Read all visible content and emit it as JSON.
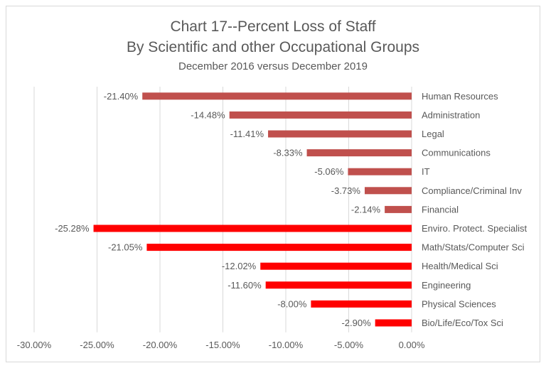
{
  "chart_data": {
    "type": "bar",
    "orientation": "horizontal",
    "title": "Chart 17--Percent Loss of Staff",
    "title_line2": "By Scientific and other Occupational Groups",
    "subtitle": "December 2016 versus December 2019",
    "xlabel": "",
    "ylabel": "",
    "xlim": [
      -30,
      0
    ],
    "x_ticks": [
      "-30.00%",
      "-25.00%",
      "-20.00%",
      "-15.00%",
      "-10.00%",
      "-5.00%",
      "0.00%"
    ],
    "x_tick_values": [
      -30,
      -25,
      -20,
      -15,
      -10,
      -5,
      0
    ],
    "grid": true,
    "legend": "none",
    "categories": [
      "Human Resources",
      "Administration",
      "Legal",
      "Communications",
      "IT",
      "Compliance/Criminal Inv",
      "Financial",
      "Enviro. Protect. Specialist",
      "Math/Stats/Computer Sci",
      "Health/Medical Sci",
      "Engineering",
      "Physical Sciences",
      "Bio/Life/Eco/Tox Sci"
    ],
    "values": [
      -21.4,
      -14.48,
      -11.41,
      -8.33,
      -5.06,
      -3.73,
      -2.14,
      -25.28,
      -21.05,
      -12.02,
      -11.6,
      -8.0,
      -2.9
    ],
    "data_labels": [
      "-21.40%",
      "-14.48%",
      "-11.41%",
      "-8.33%",
      "-5.06%",
      "-3.73%",
      "-2.14%",
      "-25.28%",
      "-21.05%",
      "-12.02%",
      "-11.60%",
      "-8.00%",
      "-2.90%"
    ],
    "bar_colors": [
      "#c0504d",
      "#c0504d",
      "#c0504d",
      "#c0504d",
      "#c0504d",
      "#c0504d",
      "#c0504d",
      "#ff0000",
      "#ff0000",
      "#ff0000",
      "#ff0000",
      "#ff0000",
      "#ff0000"
    ]
  }
}
